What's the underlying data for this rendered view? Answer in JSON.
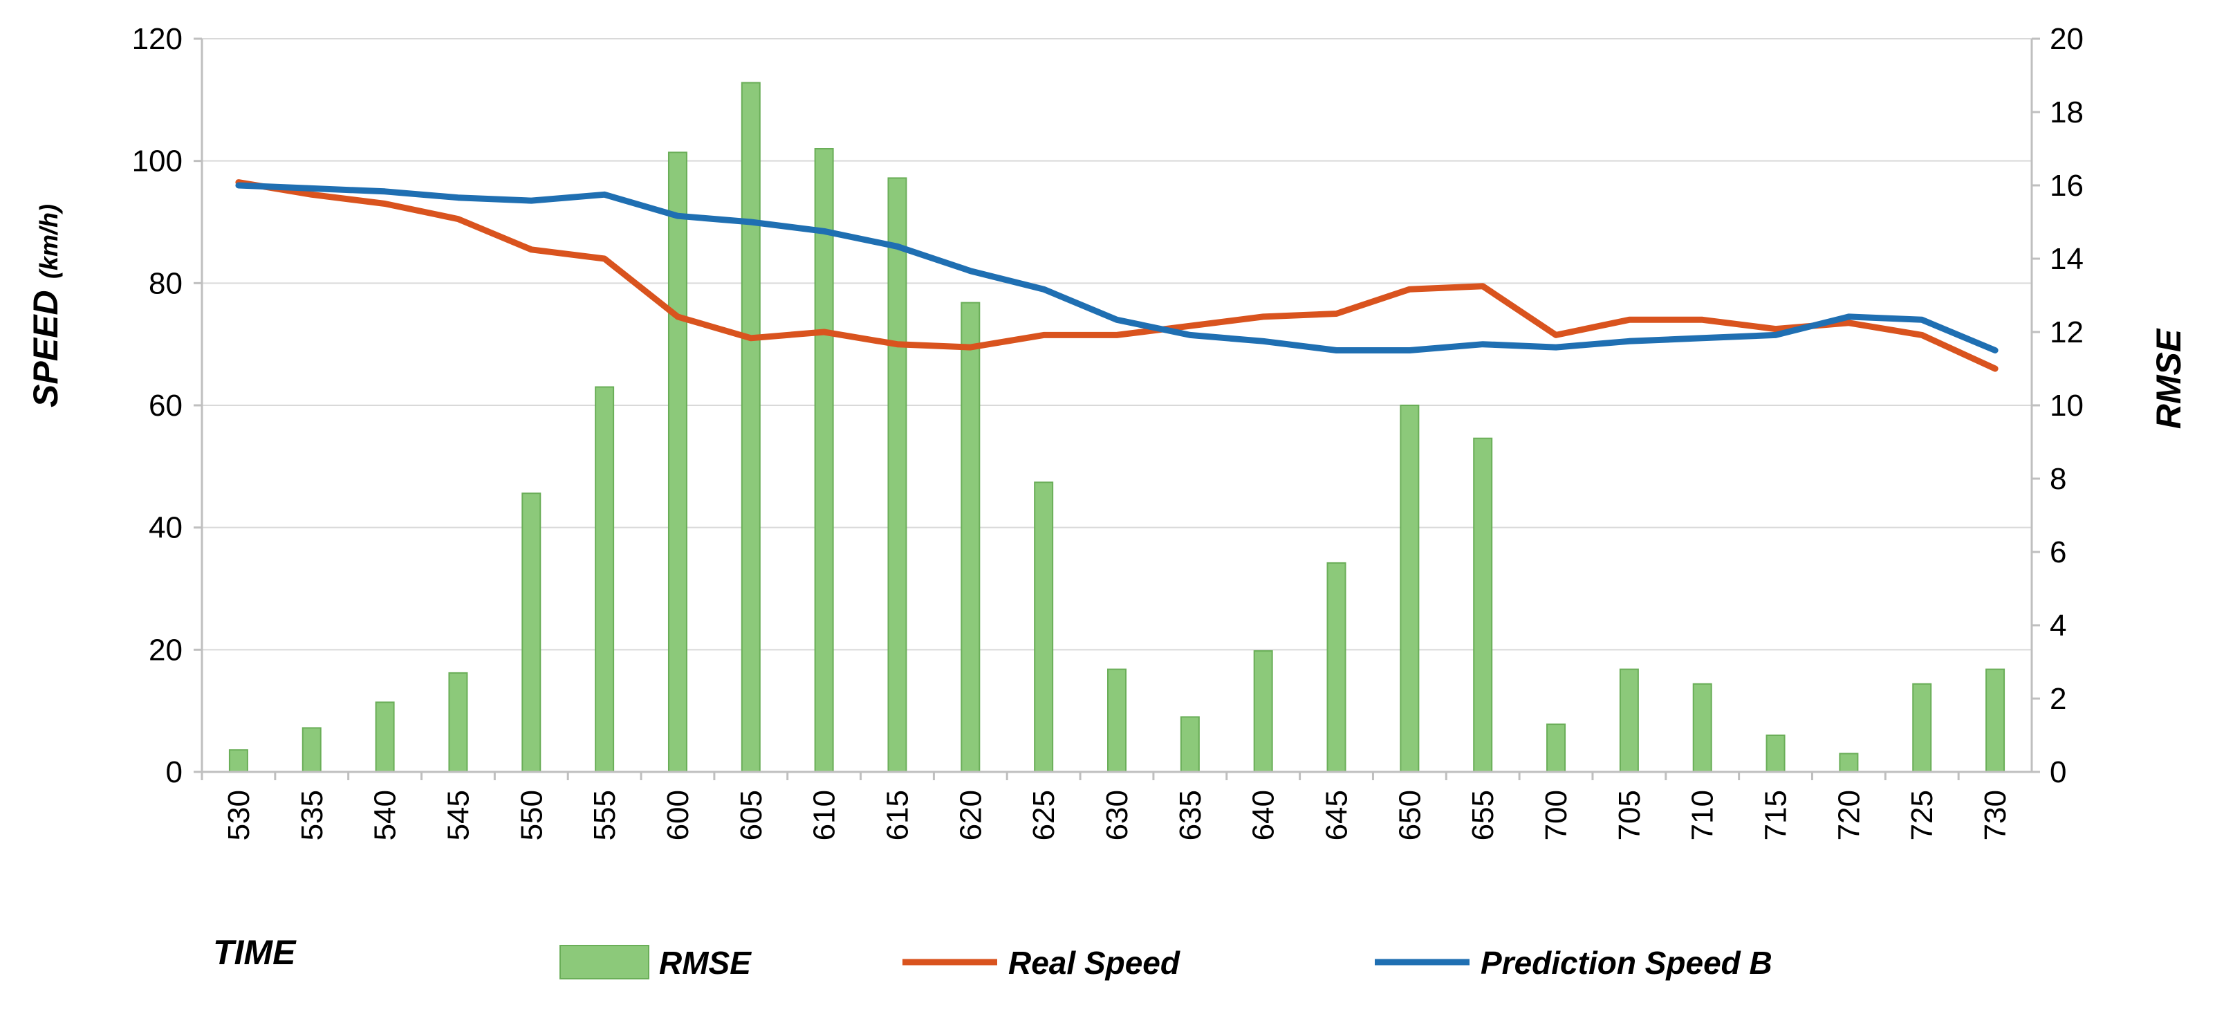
{
  "chart_data": {
    "type": "bar+line",
    "title": "",
    "xlabel": "TIME",
    "ylabel": "SPEED",
    "ylabel_unit": "(km/h)",
    "y2label": "RMSE",
    "categories": [
      "530",
      "535",
      "540",
      "545",
      "550",
      "555",
      "600",
      "605",
      "610",
      "615",
      "620",
      "625",
      "630",
      "635",
      "640",
      "645",
      "650",
      "655",
      "700",
      "705",
      "710",
      "715",
      "720",
      "725",
      "730"
    ],
    "ylim": [
      0,
      120
    ],
    "y_ticks": [
      0,
      20,
      40,
      60,
      80,
      100,
      120
    ],
    "y2lim": [
      0,
      20
    ],
    "y2_ticks": [
      0,
      2,
      4,
      6,
      8,
      10,
      12,
      14,
      16,
      18,
      20
    ],
    "grid": true,
    "legend_position": "bottom",
    "series": [
      {
        "name": "RMSE",
        "type": "bar",
        "axis": "right",
        "color": "#8cc97a",
        "edge_color": "#6aae58",
        "values": [
          0.6,
          1.2,
          1.9,
          2.7,
          7.6,
          10.5,
          16.9,
          18.8,
          17.0,
          16.2,
          12.8,
          7.9,
          2.8,
          1.5,
          3.3,
          5.7,
          10.0,
          9.1,
          1.3,
          2.8,
          2.4,
          1.0,
          0.5,
          2.4,
          2.8
        ]
      },
      {
        "name": "Real Speed",
        "type": "line",
        "axis": "left",
        "color": "#d9531e",
        "values": [
          96.5,
          94.5,
          93.0,
          90.5,
          85.5,
          84.0,
          74.5,
          71.0,
          72.0,
          70.0,
          69.5,
          71.5,
          71.5,
          73.0,
          74.5,
          75.0,
          79.0,
          79.5,
          71.5,
          74.0,
          74.0,
          72.5,
          73.5,
          71.5,
          66.0
        ]
      },
      {
        "name": "Prediction Speed B",
        "type": "line",
        "axis": "left",
        "color": "#1f6fb2",
        "values": [
          96.0,
          95.5,
          95.0,
          94.0,
          93.5,
          94.5,
          91.0,
          90.0,
          88.5,
          86.0,
          82.0,
          79.0,
          74.0,
          71.5,
          70.5,
          69.0,
          69.0,
          70.0,
          69.5,
          70.5,
          71.0,
          71.5,
          74.5,
          74.0,
          69.0
        ]
      }
    ]
  }
}
